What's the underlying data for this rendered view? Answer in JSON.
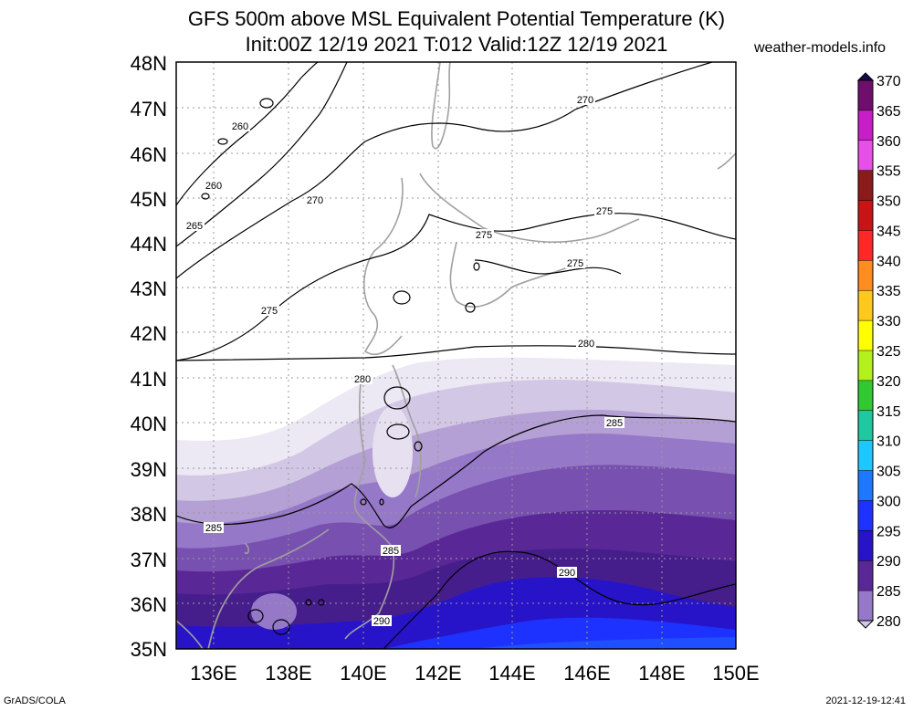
{
  "title_line1": "GFS 500m above MSL Equivalent Potential Temperature (K)",
  "title_line2": "Init:00Z 12/19 2021 T:012 Valid:12Z 12/19 2021",
  "site": "weather-models.info",
  "footer_left": "GrADS/COLA",
  "footer_right": "2021-12-19-12:41",
  "lat_labels": [
    "48N",
    "47N",
    "46N",
    "45N",
    "44N",
    "43N",
    "42N",
    "41N",
    "40N",
    "39N",
    "38N",
    "37N",
    "36N",
    "35N"
  ],
  "lon_labels": [
    "136E",
    "138E",
    "140E",
    "142E",
    "144E",
    "146E",
    "148E",
    "150E"
  ],
  "colorbar": {
    "labels": [
      "370",
      "365",
      "360",
      "355",
      "350",
      "345",
      "340",
      "335",
      "330",
      "325",
      "320",
      "315",
      "310",
      "305",
      "300",
      "295",
      "290",
      "285",
      "280"
    ],
    "colors": [
      "#1a0a4a",
      "#6e0f6e",
      "#c81ec8",
      "#e650e6",
      "#8b1a1a",
      "#c81414",
      "#ff2828",
      "#ff8c1e",
      "#ffc81e",
      "#ffff00",
      "#b4f01e",
      "#32c832",
      "#1ec8a0",
      "#1ec8ff",
      "#1e78ff",
      "#1e32ff",
      "#2814c8",
      "#5a2896",
      "#9678c8",
      "#d2c8e6"
    ]
  },
  "contour_labels": [
    "260",
    "260",
    "265",
    "270",
    "270",
    "275",
    "275",
    "275",
    "275",
    "280",
    "280",
    "285",
    "285",
    "285",
    "290",
    "290"
  ]
}
